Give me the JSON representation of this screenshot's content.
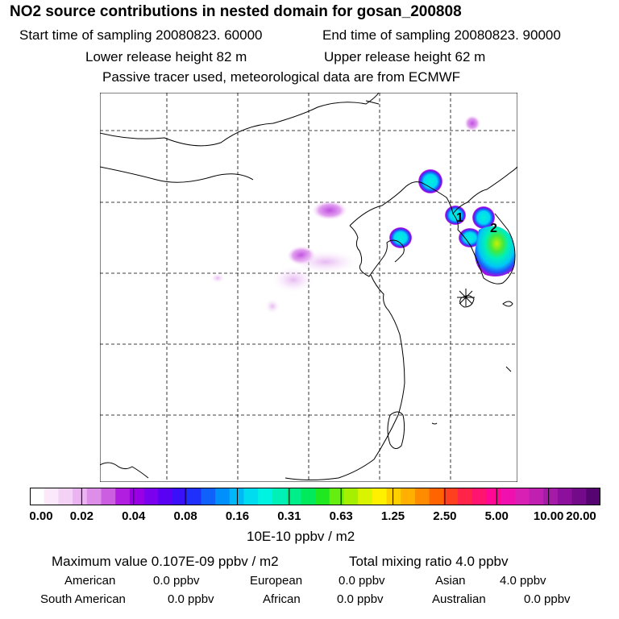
{
  "header": {
    "title": "NO2 source contributions in nested domain for gosan_200808",
    "start_label": "Start time of sampling 20080823. 60000",
    "end_label": "End time of sampling 20080823. 90000",
    "lower_label": "Lower release height   82 m",
    "upper_label": "Upper release height   62 m",
    "tracer_label": "Passive tracer used, meteorological data are from ECMWF"
  },
  "map": {
    "markers": [
      {
        "label": "1"
      },
      {
        "label": "2"
      }
    ],
    "receptor_symbol": "asterisk-icon"
  },
  "colorbar": {
    "ticks": [
      "0.00",
      "0.02",
      "0.04",
      "0.08",
      "0.16",
      "0.31",
      "0.63",
      "1.25",
      "2.50",
      "5.00",
      "10.00",
      "20.00"
    ],
    "colors": [
      "#ffffff",
      "#fbe9fb",
      "#f4d2f6",
      "#eab4f0",
      "#dc8ee8",
      "#cc5ee2",
      "#b21ee0",
      "#9900e6",
      "#7a00ee",
      "#5a00f3",
      "#3a10f8",
      "#2030fb",
      "#1060fb",
      "#0090fb",
      "#00b8f6",
      "#00dcef",
      "#00f2e0",
      "#00f0b8",
      "#00ee8a",
      "#00ea5c",
      "#20e820",
      "#66ee10",
      "#a4f000",
      "#d8f400",
      "#fff000",
      "#ffd000",
      "#ffb000",
      "#ff8c00",
      "#ff6400",
      "#ff4020",
      "#ff2448",
      "#ff1470",
      "#ff0896",
      "#f010b0",
      "#d820b4",
      "#c020b0",
      "#a61aa8",
      "#8c109c",
      "#720a8a",
      "#560470"
    ],
    "unit": "10E-10 ppbv / m2"
  },
  "stats": {
    "max_label": "Maximum value  0.107E-09 ppbv / m2",
    "total_label": "Total mixing ratio       4.0 ppbv",
    "regions": [
      {
        "name": "American",
        "value": "0.0 ppbv"
      },
      {
        "name": "European",
        "value": "0.0 ppbv"
      },
      {
        "name": "Asian",
        "value": "4.0 ppbv"
      },
      {
        "name": "South American",
        "value": "0.0 ppbv"
      },
      {
        "name": "African",
        "value": "0.0 ppbv"
      },
      {
        "name": "Australian",
        "value": "0.0 ppbv"
      }
    ]
  }
}
